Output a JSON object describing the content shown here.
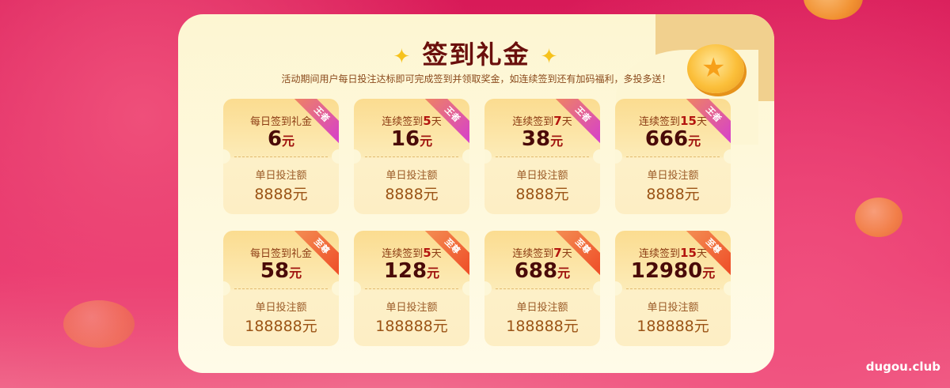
{
  "title": "签到礼金",
  "subtitle": "活动期间用户每日投注达标即可完成签到并领取奖金，如连续签到还有加码福利，多投多送！",
  "watermark": "dugou.club",
  "colors": {
    "background": "#d81a58",
    "panel": "#fdf6d2",
    "title": "#6a0f0c"
  },
  "icons": [
    "sparkle-icon",
    "coin-star-icon"
  ],
  "cards": [
    {
      "pre": "每日签到礼金",
      "days": "",
      "post": "",
      "amount": "6",
      "unit": "元",
      "badge": "王者",
      "label": "单日投注额",
      "requirement": "8888元"
    },
    {
      "pre": "连续签到",
      "days": "5",
      "post": "天",
      "amount": "16",
      "unit": "元",
      "badge": "王者",
      "label": "单日投注额",
      "requirement": "8888元"
    },
    {
      "pre": "连续签到",
      "days": "7",
      "post": "天",
      "amount": "38",
      "unit": "元",
      "badge": "王者",
      "label": "单日投注额",
      "requirement": "8888元"
    },
    {
      "pre": "连续签到",
      "days": "15",
      "post": "天",
      "amount": "666",
      "unit": "元",
      "badge": "王者",
      "label": "单日投注额",
      "requirement": "8888元"
    },
    {
      "pre": "每日签到礼金",
      "days": "",
      "post": "",
      "amount": "58",
      "unit": "元",
      "badge": "至尊",
      "label": "单日投注额",
      "requirement": "188888元"
    },
    {
      "pre": "连续签到",
      "days": "5",
      "post": "天",
      "amount": "128",
      "unit": "元",
      "badge": "至尊",
      "label": "单日投注额",
      "requirement": "188888元"
    },
    {
      "pre": "连续签到",
      "days": "7",
      "post": "天",
      "amount": "688",
      "unit": "元",
      "badge": "至尊",
      "label": "单日投注额",
      "requirement": "188888元"
    },
    {
      "pre": "连续签到",
      "days": "15",
      "post": "天",
      "amount": "12980",
      "unit": "元",
      "badge": "至尊",
      "label": "单日投注额",
      "requirement": "188888元"
    }
  ]
}
